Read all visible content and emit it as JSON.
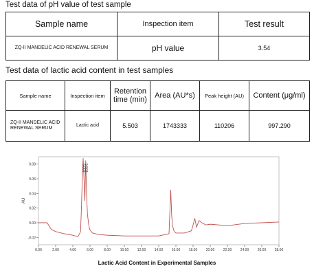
{
  "table1": {
    "title": "Test data of pH value of test sample",
    "headers": [
      "Sample name",
      "Inspection item",
      "Test result"
    ],
    "row": [
      "ZQ-II MANDELIC ACID RENEWAL SERUM",
      "pH value",
      "3.54"
    ]
  },
  "table2": {
    "title": "Test data of lactic acid content in test samples",
    "headers": [
      "Sample name",
      "Inspection item",
      "Retention time (min)",
      "Area (AU*s)",
      "Peak height (AU)",
      "Content (μg/ml)"
    ],
    "row": [
      "ZQ-II MANDELIC ACID RENEWAL SERUM",
      "Lactic acid",
      "5.503",
      "1743333",
      "110206",
      "997.290"
    ]
  },
  "caption": "Lactic Acid Content in Experimental Samples",
  "chart_data": {
    "type": "line",
    "ylabel": "AU",
    "xlim": [
      0,
      28
    ],
    "ylim": [
      -0.03,
      0.09
    ],
    "xticks": [
      "0.00",
      "2.00",
      "4.00",
      "6.00",
      "8.00",
      "10.00",
      "12.00",
      "14.00",
      "16.00",
      "18.00",
      "20.00",
      "22.00",
      "24.00",
      "26.00",
      "28.00"
    ],
    "yticks": [
      "-0.02",
      "0.00",
      "0.02",
      "0.04",
      "0.06",
      "0.08"
    ],
    "peak_labels": [
      "5.003",
      "5.503"
    ],
    "line_color": "#c0504d",
    "x": [
      0,
      1.0,
      1.5,
      2.0,
      3.0,
      4.0,
      4.6,
      4.9,
      5.0,
      5.1,
      5.2,
      5.3,
      5.4,
      5.5,
      5.6,
      5.7,
      5.8,
      5.9,
      6.0,
      6.3,
      7.0,
      8.0,
      10.0,
      12.0,
      14.0,
      15.2,
      15.4,
      15.5,
      15.6,
      15.8,
      16.0,
      17.0,
      17.8,
      18.0,
      18.2,
      18.4,
      18.7,
      19.0,
      19.5,
      20.0,
      22.0,
      24.0,
      26.0,
      28.0
    ],
    "y": [
      0.0,
      0.0,
      -0.009,
      -0.012,
      -0.015,
      -0.017,
      -0.019,
      -0.012,
      0.02,
      0.06,
      0.088,
      0.06,
      0.03,
      0.085,
      0.04,
      0.012,
      0.002,
      -0.006,
      -0.01,
      -0.014,
      -0.016,
      -0.017,
      -0.018,
      -0.018,
      -0.018,
      -0.015,
      0.045,
      0.012,
      -0.004,
      -0.012,
      -0.014,
      -0.014,
      -0.011,
      -0.003,
      0.006,
      -0.006,
      0.003,
      0.0,
      -0.003,
      -0.002,
      -0.004,
      -0.001,
      0.0,
      0.001
    ]
  }
}
